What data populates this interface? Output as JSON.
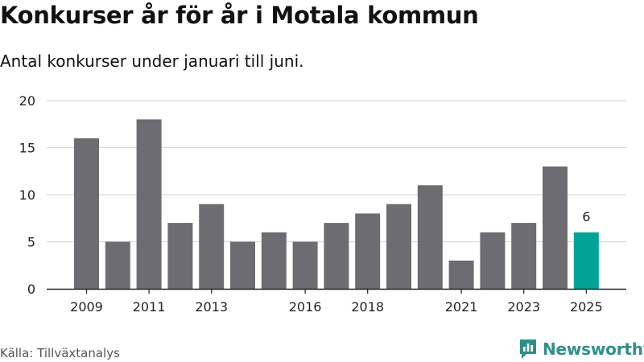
{
  "title": "Konkurser år för år i Motala kommun",
  "subtitle": "Antal konkurser under januari till juni.",
  "source": "Källa: Tillväxtanalys",
  "brand": "Newsworthy",
  "colors": {
    "bar": "#6d6c71",
    "highlight": "#00a396",
    "grid": "#d9d9d9",
    "axis": "#222222",
    "brand": "#2f8f87"
  },
  "chart_data": {
    "type": "bar",
    "categories": [
      "2009",
      "2010",
      "2011",
      "2012",
      "2013",
      "2014",
      "2015",
      "2016",
      "2017",
      "2018",
      "2019",
      "2020",
      "2021",
      "2022",
      "2023",
      "2024",
      "2025"
    ],
    "values": [
      16,
      5,
      18,
      7,
      9,
      5,
      6,
      5,
      7,
      8,
      9,
      11,
      3,
      6,
      7,
      13,
      6
    ],
    "x_tick_labels": [
      "2009",
      "2011",
      "2013",
      "2016",
      "2018",
      "2021",
      "2023",
      "2025"
    ],
    "y_ticks": [
      0,
      5,
      10,
      15,
      20
    ],
    "ylim": [
      0,
      20
    ],
    "highlight_category": "2025",
    "data_labels": [
      {
        "category": "2025",
        "text": "6"
      }
    ],
    "grid": true
  }
}
